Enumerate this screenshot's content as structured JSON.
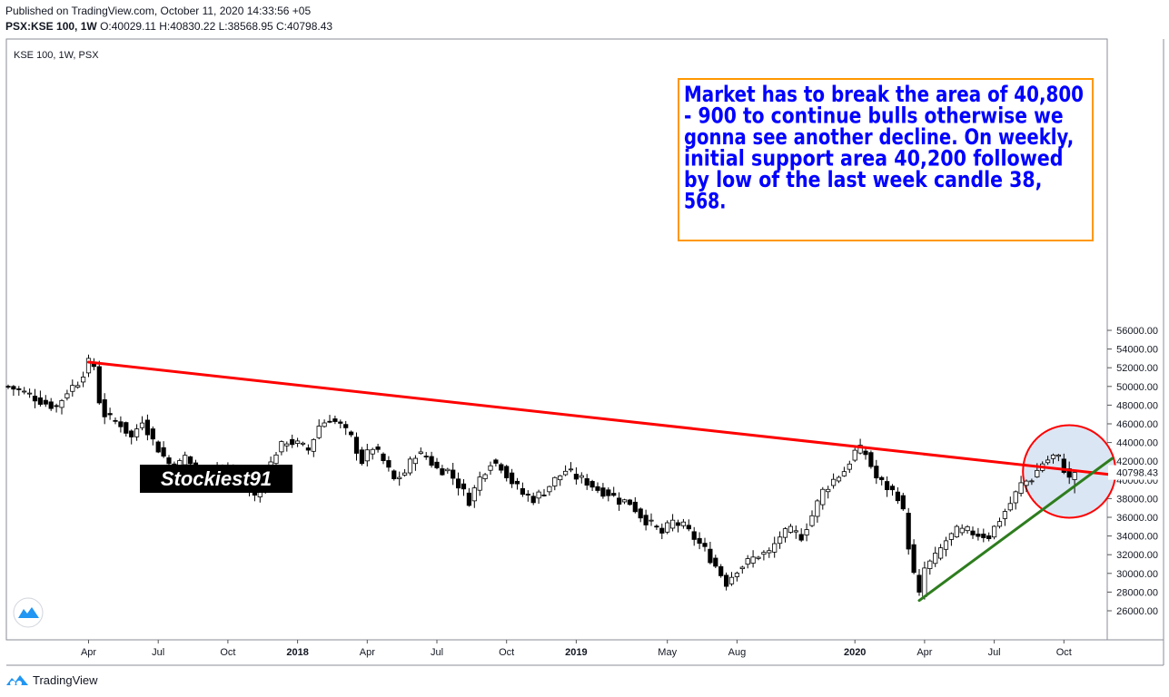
{
  "header": {
    "published": "Published on TradingView.com, October 11, 2020 14:33:56 +05",
    "symbol": "PSX:KSE 100, 1W",
    "ohlc": "O:40029.11 H:40830.22 L:38568.95 C:40798.43"
  },
  "footer": {
    "brand": "TradingView",
    "icon": "tradingview-logo-icon"
  },
  "colors": {
    "up_body": "#ffffff",
    "down_body": "#000000",
    "wick": "#000000",
    "resistance_line": "#ff0000",
    "support_line": "#2e7d1e",
    "annotation_text": "#0000ff",
    "annotation_border": "#ff9800",
    "highlight_circle_stroke": "#ff0000",
    "highlight_circle_fill": "#dbe6f4"
  },
  "chart_data": {
    "type": "candlestick",
    "title": "KSE 100, 1W, PSX",
    "watermark": "Stockiest91",
    "y_axis": {
      "ticks": [
        26000,
        28000,
        30000,
        32000,
        34000,
        36000,
        38000,
        40000,
        42000,
        44000,
        46000,
        48000,
        50000,
        52000,
        54000,
        56000
      ],
      "tick_labels": [
        "26000.00",
        "28000.00",
        "30000.00",
        "32000.00",
        "34000.00",
        "36000.00",
        "38000.00",
        "40000.00",
        "42000.00",
        "44000.00",
        "46000.00",
        "48000.00",
        "50000.00",
        "52000.00",
        "54000.00",
        "56000.00"
      ],
      "last_price_label": "40798.43",
      "last_price": 40798.43,
      "ylim": [
        25000,
        57000
      ]
    },
    "x_axis": {
      "labels": [
        "Apr",
        "Jul",
        "Oct",
        "2018",
        "Apr",
        "Jul",
        "Oct",
        "2019",
        "May",
        "Aug",
        "2020",
        "Apr",
        "Jul",
        "Oct"
      ],
      "bold": [
        false,
        false,
        false,
        true,
        false,
        false,
        false,
        true,
        false,
        false,
        true,
        false,
        false,
        false
      ],
      "label_week_index": [
        15,
        28,
        41,
        54,
        67,
        80,
        93,
        106,
        123,
        136,
        158,
        171,
        184,
        197
      ]
    },
    "anchors": [
      {
        "w": 0,
        "c": 50000
      },
      {
        "w": 4,
        "c": 49100
      },
      {
        "w": 7,
        "c": 48200
      },
      {
        "w": 9,
        "c": 47800
      },
      {
        "w": 11,
        "c": 49500
      },
      {
        "w": 13,
        "c": 50500
      },
      {
        "w": 15,
        "c": 52500
      },
      {
        "w": 16,
        "c": 52200
      },
      {
        "w": 17,
        "c": 48500
      },
      {
        "w": 18,
        "c": 47000
      },
      {
        "w": 19,
        "c": 46500
      },
      {
        "w": 21,
        "c": 46000
      },
      {
        "w": 23,
        "c": 44500
      },
      {
        "w": 25,
        "c": 46500
      },
      {
        "w": 27,
        "c": 44200
      },
      {
        "w": 29,
        "c": 42500
      },
      {
        "w": 31,
        "c": 41000
      },
      {
        "w": 33,
        "c": 42500
      },
      {
        "w": 35,
        "c": 41000
      },
      {
        "w": 37,
        "c": 39800
      },
      {
        "w": 39,
        "c": 41500
      },
      {
        "w": 41,
        "c": 40800
      },
      {
        "w": 43,
        "c": 40000
      },
      {
        "w": 45,
        "c": 38800
      },
      {
        "w": 46,
        "c": 38200
      },
      {
        "w": 48,
        "c": 40500
      },
      {
        "w": 50,
        "c": 43000
      },
      {
        "w": 52,
        "c": 44200
      },
      {
        "w": 54,
        "c": 43800
      },
      {
        "w": 56,
        "c": 43200
      },
      {
        "w": 58,
        "c": 45800
      },
      {
        "w": 60,
        "c": 46600
      },
      {
        "w": 62,
        "c": 45800
      },
      {
        "w": 64,
        "c": 44500
      },
      {
        "w": 66,
        "c": 42000
      },
      {
        "w": 68,
        "c": 43500
      },
      {
        "w": 70,
        "c": 42000
      },
      {
        "w": 72,
        "c": 40000
      },
      {
        "w": 74,
        "c": 40800
      },
      {
        "w": 76,
        "c": 42800
      },
      {
        "w": 78,
        "c": 42500
      },
      {
        "w": 80,
        "c": 41200
      },
      {
        "w": 82,
        "c": 41000
      },
      {
        "w": 84,
        "c": 39500
      },
      {
        "w": 86,
        "c": 37800
      },
      {
        "w": 88,
        "c": 40200
      },
      {
        "w": 90,
        "c": 42000
      },
      {
        "w": 92,
        "c": 41500
      },
      {
        "w": 94,
        "c": 39800
      },
      {
        "w": 96,
        "c": 38500
      },
      {
        "w": 98,
        "c": 38000
      },
      {
        "w": 100,
        "c": 38800
      },
      {
        "w": 102,
        "c": 40000
      },
      {
        "w": 104,
        "c": 41000
      },
      {
        "w": 106,
        "c": 40300
      },
      {
        "w": 108,
        "c": 39800
      },
      {
        "w": 110,
        "c": 39000
      },
      {
        "w": 112,
        "c": 38600
      },
      {
        "w": 114,
        "c": 37800
      },
      {
        "w": 116,
        "c": 37600
      },
      {
        "w": 118,
        "c": 36200
      },
      {
        "w": 120,
        "c": 35200
      },
      {
        "w": 122,
        "c": 34300
      },
      {
        "w": 124,
        "c": 35500
      },
      {
        "w": 126,
        "c": 35000
      },
      {
        "w": 128,
        "c": 33800
      },
      {
        "w": 130,
        "c": 32500
      },
      {
        "w": 132,
        "c": 30800
      },
      {
        "w": 134,
        "c": 29000
      },
      {
        "w": 136,
        "c": 30500
      },
      {
        "w": 138,
        "c": 31200
      },
      {
        "w": 140,
        "c": 32000
      },
      {
        "w": 142,
        "c": 32200
      },
      {
        "w": 144,
        "c": 34000
      },
      {
        "w": 146,
        "c": 34500
      },
      {
        "w": 148,
        "c": 34000
      },
      {
        "w": 150,
        "c": 36200
      },
      {
        "w": 152,
        "c": 38800
      },
      {
        "w": 154,
        "c": 40000
      },
      {
        "w": 156,
        "c": 41000
      },
      {
        "w": 158,
        "c": 43000
      },
      {
        "w": 159,
        "c": 43200
      },
      {
        "w": 160,
        "c": 42800
      },
      {
        "w": 162,
        "c": 40200
      },
      {
        "w": 164,
        "c": 39200
      },
      {
        "w": 166,
        "c": 38300
      },
      {
        "w": 167,
        "c": 36500
      },
      {
        "w": 168,
        "c": 33000
      },
      {
        "w": 169,
        "c": 29800
      },
      {
        "w": 170,
        "c": 27600
      },
      {
        "w": 171,
        "c": 30500
      },
      {
        "w": 173,
        "c": 31700
      },
      {
        "w": 175,
        "c": 33500
      },
      {
        "w": 177,
        "c": 34500
      },
      {
        "w": 179,
        "c": 34500
      },
      {
        "w": 181,
        "c": 34200
      },
      {
        "w": 183,
        "c": 34000
      },
      {
        "w": 185,
        "c": 35800
      },
      {
        "w": 187,
        "c": 37500
      },
      {
        "w": 189,
        "c": 39500
      },
      {
        "w": 191,
        "c": 40200
      },
      {
        "w": 193,
        "c": 41800
      },
      {
        "w": 195,
        "c": 42500
      },
      {
        "w": 196,
        "c": 42300
      },
      {
        "w": 197,
        "c": 41200
      },
      {
        "w": 198,
        "c": 40029
      },
      {
        "w": 199,
        "c": 40798
      }
    ],
    "last_candle": {
      "o": 40029.11,
      "h": 40830.22,
      "l": 38568.95,
      "c": 40798.43
    },
    "trendlines": [
      {
        "name": "resistance",
        "from": {
          "w": 15,
          "v": 52600
        },
        "to": {
          "w": 206,
          "v": 40550
        },
        "color": "#ff0000"
      },
      {
        "name": "support",
        "from": {
          "w": 170,
          "v": 27100
        },
        "to": {
          "w": 206,
          "v": 42300
        },
        "color": "#2e7d1e"
      }
    ],
    "highlight_circle": {
      "center": {
        "w": 198,
        "v": 40900
      }
    },
    "annotation": "Market has to break the area of 40,800 - 900 to continue bulls otherwise we gonna see another decline. On weekly, initial support area 40,200 followed by low of the last week candle 38, 568."
  }
}
